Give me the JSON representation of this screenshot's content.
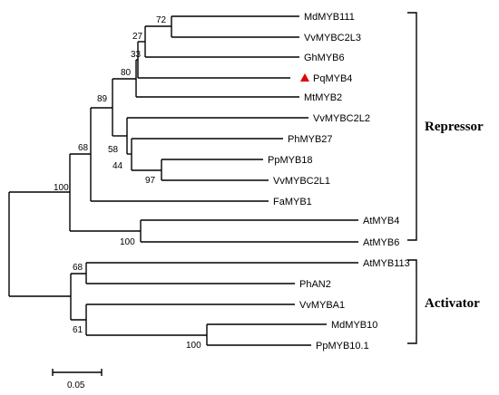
{
  "tree": {
    "leaves": {
      "mdmyb111": "MdMYB111",
      "vvmybc2l3": "VvMYBC2L3",
      "ghmyb6": "GhMYB6",
      "pqmyb4": "PqMYB4",
      "mtmyb2": "MtMYB2",
      "vvmybc2l2": "VvMYBC2L2",
      "phmyb27": "PhMYB27",
      "ppmyb18": "PpMYB18",
      "vvmybc2l1": "VvMYBC2L1",
      "famyb1": "FaMYB1",
      "atmyb4": "AtMYB4",
      "atmyb6": "AtMYB6",
      "atmyb113": "AtMYB113",
      "phan2": "PhAN2",
      "vvmyba1": "VvMYBA1",
      "mdmyb10": "MdMYB10",
      "ppmyb10_1": "PpMYB10.1"
    },
    "bootstrap": {
      "n72": "72",
      "n27": "27",
      "n33": "33",
      "n80": "80",
      "n89": "89",
      "n58": "58",
      "n44": "44",
      "n97": "97",
      "n68a": "68",
      "n100a": "100",
      "n100b": "100",
      "n68b": "68",
      "n61": "61",
      "n100c": "100"
    },
    "highlight_marker_color": "#e00000"
  },
  "groups": {
    "repressor": "Repressor",
    "activator": "Activator"
  },
  "scale_bar": {
    "label": "0.05"
  }
}
